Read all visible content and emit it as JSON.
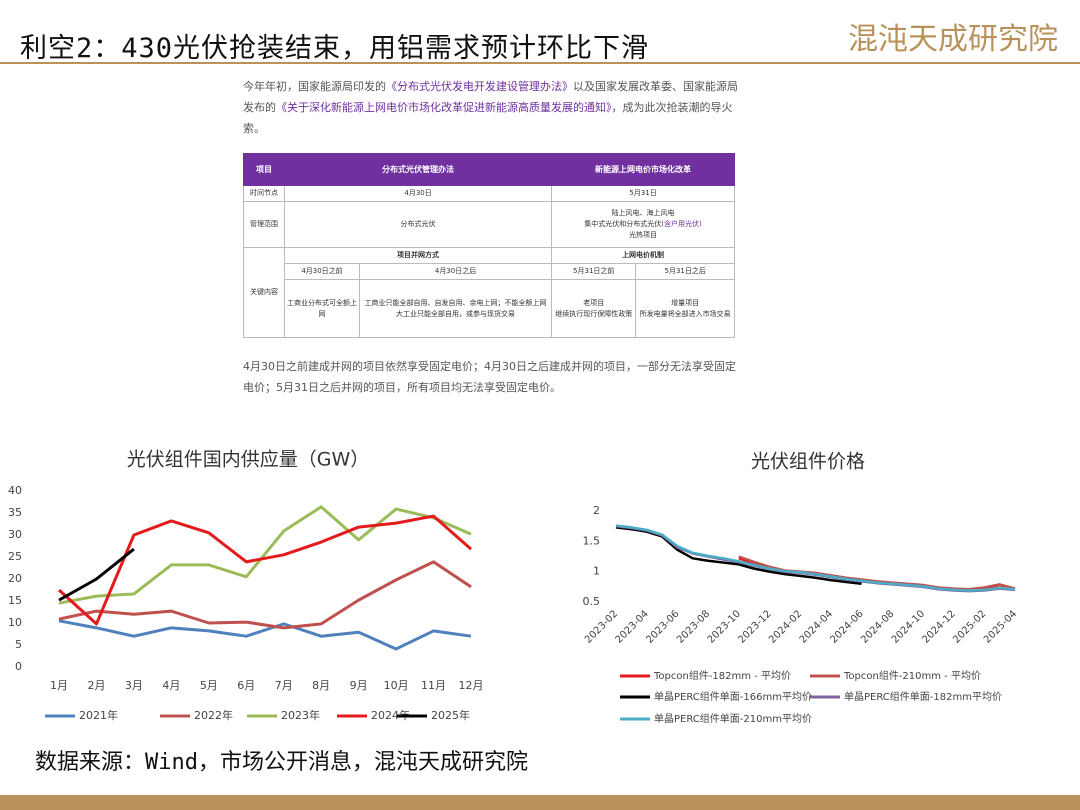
{
  "header": {
    "title": "利空2：430光伏抢装结束，用铝需求预计环比下滑",
    "logo": "混沌天成研究院"
  },
  "policy": {
    "intro": [
      "今年年初，国家能源局印发的",
      "《分布式光伏发电开发建设管理办法》",
      "以及国家发展改革委、国家能源局发布的",
      "《关于深化新能源上网电价市场化改革促进新能源高质量发展的通知》",
      "，成为此次抢装潮的导火索。"
    ],
    "table": {
      "header": [
        "项目",
        "分布式光伏管理办法",
        "新能源上网电价市场化改革"
      ],
      "time": [
        "时间节点",
        "4月30日",
        "5月31日"
      ],
      "scope": [
        "管理范围",
        "分布式光伏",
        "陆上风电、海上风电",
        "集中式光伏和分布式光伏(",
        "含户用光伏)",
        "光热项目"
      ],
      "key": {
        "label": "关键内容",
        "sub": [
          "项目并网方式",
          "上网电价机制"
        ],
        "periods": [
          "4月30日之前",
          "4月30日之后",
          "5月31日之前",
          "5月31日之后"
        ],
        "cells": [
          [
            "工商业分布式可全额上网"
          ],
          [
            "工商业只能全部自用、自发自用、余电上网；不能全额上网",
            "大工业只能全部自用，或参与现货交易"
          ],
          [
            "老项目",
            "继续执行现行保障性政策"
          ],
          [
            "增量项目",
            "所发电量将全部进入市场交易"
          ]
        ]
      }
    },
    "note": "4月30日之前建成并网的项目依然享受固定电价；4月30日之后建成并网的项目，一部分无法享受固定电价；5月31日之后并网的项目，所有项目均无法享受固定电价。"
  },
  "chart_data": [
    {
      "type": "line",
      "title": "光伏组件国内供应量（GW）",
      "categories": [
        "1月",
        "2月",
        "3月",
        "4月",
        "5月",
        "6月",
        "7月",
        "8月",
        "9月",
        "10月",
        "11月",
        "12月"
      ],
      "ylim": [
        0,
        40
      ],
      "yticks": [
        0,
        5,
        10,
        15,
        20,
        25,
        30,
        35,
        40
      ],
      "grid": false,
      "legend": "bottom",
      "series": [
        {
          "name": "2021年",
          "color": "#4f81bd",
          "values": [
            10.5,
            8.9,
            7,
            8.9,
            8.2,
            7,
            9.8,
            7,
            7.9,
            4.1,
            8.2,
            7
          ]
        },
        {
          "name": "2022年",
          "color": "#c0504d",
          "values": [
            10.9,
            12.7,
            12,
            12.7,
            10,
            10.2,
            8.9,
            9.8,
            15.2,
            19.8,
            23.9,
            18.2
          ]
        },
        {
          "name": "2023年",
          "color": "#9bbb59",
          "values": [
            14.5,
            16.1,
            16.6,
            23.2,
            23.2,
            20.5,
            30.9,
            36.4,
            28.9,
            35.9,
            33.9,
            30.2
          ]
        },
        {
          "name": "2024年",
          "color": "#e41a1c",
          "values": [
            17.5,
            9.8,
            30,
            33.2,
            30.5,
            23.9,
            25.5,
            28.4,
            31.8,
            32.7,
            34.3,
            26.8
          ]
        },
        {
          "name": "2025年",
          "color": "#000000",
          "values": [
            15.2,
            20,
            26.8,
            null,
            null,
            null,
            null,
            null,
            null,
            null,
            null,
            null
          ]
        }
      ]
    },
    {
      "type": "line",
      "title": "光伏组件价格",
      "categories": [
        "2023-02",
        null,
        "2023-04",
        null,
        "2023-06",
        null,
        "2023-08",
        null,
        "2023-10",
        null,
        "2023-12",
        null,
        "2024-02",
        null,
        "2024-04",
        null,
        "2024-06",
        null,
        "2024-08",
        null,
        "2024-10",
        null,
        "2024-12",
        null,
        "2025-02",
        null,
        "2025-04"
      ],
      "ylim": [
        0.5,
        2
      ],
      "yticks": [
        0.5,
        1,
        1.5,
        2
      ],
      "grid": false,
      "legend": "bottom",
      "series": [
        {
          "name": "Topcon组件-182mm - 平均价",
          "color": "#e41a1c",
          "values": [
            null,
            null,
            null,
            null,
            null,
            null,
            null,
            null,
            1.22,
            1.14,
            1.06,
            1.0,
            0.99,
            0.97,
            0.93,
            0.89,
            0.86,
            0.83,
            0.81,
            0.79,
            0.77,
            0.73,
            0.71,
            0.7,
            0.72,
            0.78,
            0.72
          ]
        },
        {
          "name": "Topcon组件-210mm - 平均价",
          "color": "#c0504d",
          "values": [
            null,
            null,
            null,
            null,
            null,
            null,
            null,
            null,
            1.25,
            1.16,
            1.08,
            1.02,
            1.0,
            0.98,
            0.94,
            0.9,
            0.87,
            0.84,
            0.82,
            0.8,
            0.78,
            0.74,
            0.72,
            0.71,
            0.74,
            0.79,
            0.72
          ]
        },
        {
          "name": "单晶PERC组件单面-166mm平均价",
          "color": "#000000",
          "values": [
            1.73,
            1.7,
            1.66,
            1.58,
            1.36,
            1.22,
            1.18,
            1.15,
            1.12,
            1.05,
            1.0,
            0.96,
            0.93,
            0.9,
            0.86,
            0.83,
            0.8,
            null,
            null,
            null,
            null,
            null,
            null,
            null,
            null,
            null,
            null
          ]
        },
        {
          "name": "单晶PERC组件单面-182mm平均价",
          "color": "#8064a2",
          "values": [
            1.75,
            1.72,
            1.68,
            1.6,
            1.4,
            1.3,
            1.25,
            1.2,
            1.16,
            1.1,
            1.04,
            1.0,
            0.98,
            0.95,
            0.91,
            0.87,
            0.84,
            0.81,
            0.79,
            0.77,
            0.75,
            0.71,
            0.69,
            0.68,
            0.69,
            0.72,
            0.7
          ]
        },
        {
          "name": "单晶PERC组件单面-210mm平均价",
          "color": "#4bacc6",
          "values": [
            1.76,
            1.73,
            1.69,
            1.61,
            1.42,
            1.31,
            1.26,
            1.22,
            1.17,
            1.11,
            1.05,
            1.01,
            0.99,
            0.96,
            0.92,
            0.88,
            0.85,
            0.82,
            0.8,
            0.78,
            0.76,
            0.72,
            0.7,
            0.69,
            0.7,
            0.73,
            0.71
          ]
        }
      ]
    }
  ],
  "footer": {
    "source": "数据来源：Wind，市场公开消息，混沌天成研究院"
  }
}
